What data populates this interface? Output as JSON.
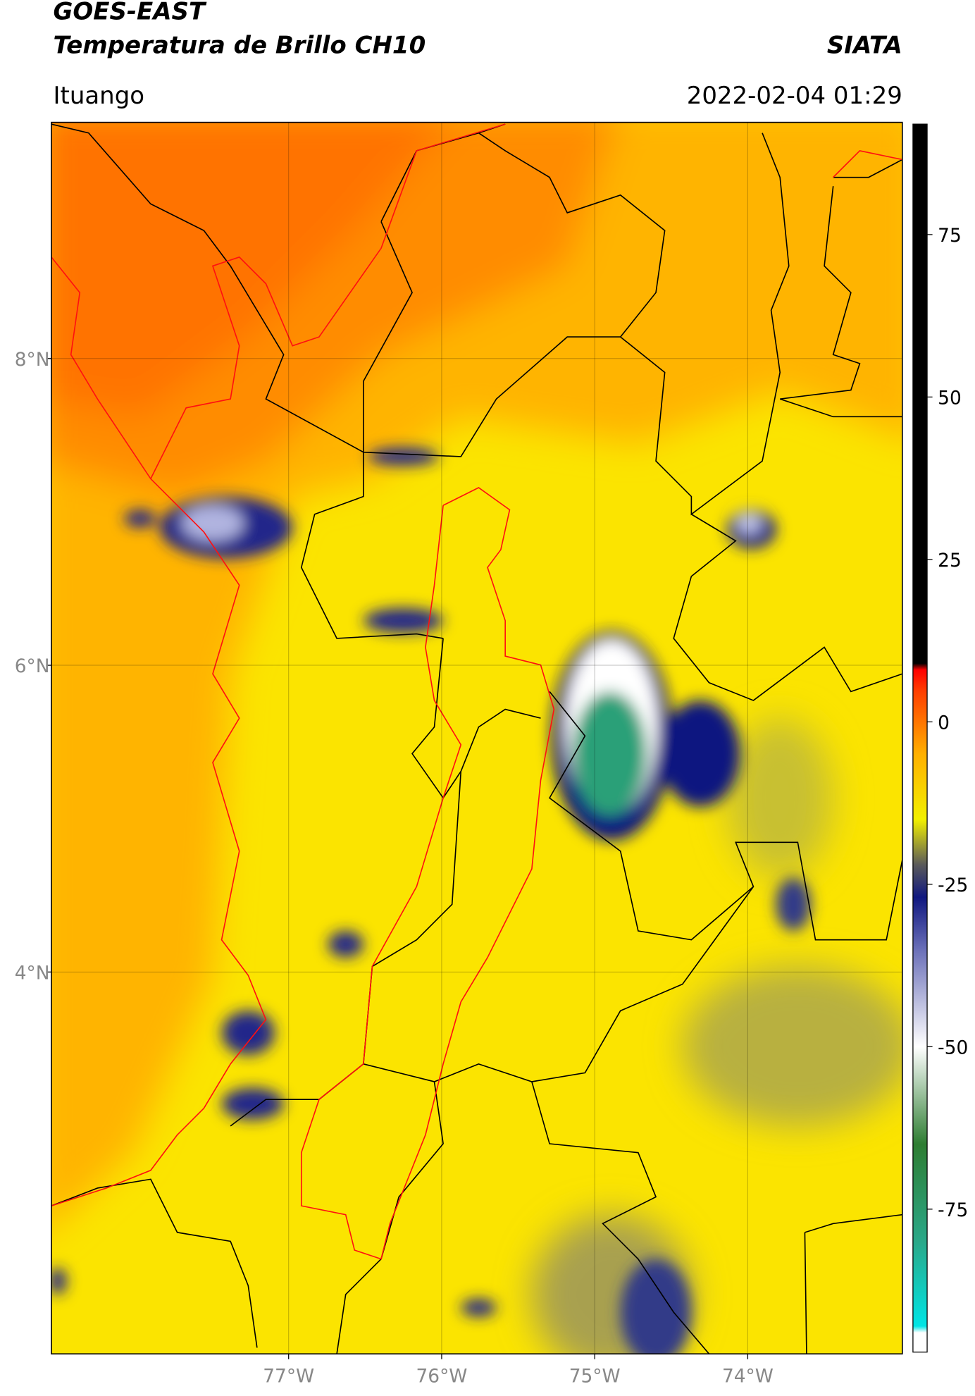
{
  "header": {
    "title": "GOES-EAST",
    "subtitle": "Temperatura de Brillo CH10",
    "brand": "SIATA",
    "location": "Ituango",
    "timestamp": "2022-02-04 01:29"
  },
  "map": {
    "lon_lim": [
      -78.55,
      -72.99
    ],
    "lat_lim": [
      1.51,
      9.54
    ],
    "lon_ticks": [
      {
        "value": -77,
        "label": "77°W"
      },
      {
        "value": -76,
        "label": "76°W"
      },
      {
        "value": -75,
        "label": "75°W"
      },
      {
        "value": -74,
        "label": "74°W"
      }
    ],
    "lat_ticks": [
      {
        "value": 8,
        "label": "8°N"
      },
      {
        "value": 6,
        "label": "6°N"
      },
      {
        "value": 4,
        "label": "4°N"
      }
    ],
    "grid": true
  },
  "colorbar": {
    "lim": [
      -97,
      92
    ],
    "ticks": [
      75,
      50,
      25,
      0,
      -25,
      -50,
      -75
    ],
    "stops": [
      {
        "value": -97,
        "color": "#ffffff"
      },
      {
        "value": -94,
        "color": "#ffffff"
      },
      {
        "value": -93,
        "color": "#00e5e5"
      },
      {
        "value": -80,
        "color": "#2aa889"
      },
      {
        "value": -65,
        "color": "#2e7d32"
      },
      {
        "value": -50,
        "color": "#ffffff"
      },
      {
        "value": -35,
        "color": "#6a6fb8"
      },
      {
        "value": -27,
        "color": "#101880"
      },
      {
        "value": -22,
        "color": "#5a5a5a"
      },
      {
        "value": -15,
        "color": "#f2f000"
      },
      {
        "value": -5,
        "color": "#ffb000"
      },
      {
        "value": 5,
        "color": "#ff3a00"
      },
      {
        "value": 8,
        "color": "#ff0000"
      },
      {
        "value": 9,
        "color": "#000000"
      },
      {
        "value": 92,
        "color": "#000000"
      }
    ]
  }
}
